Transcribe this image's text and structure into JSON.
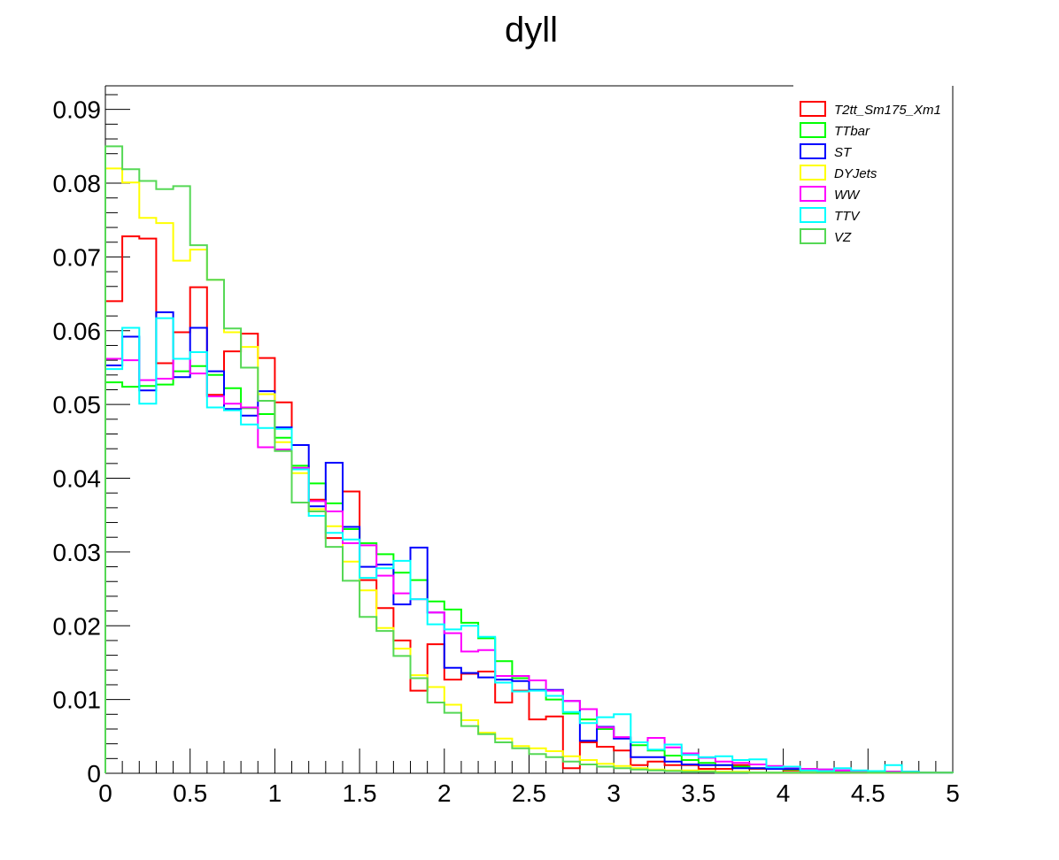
{
  "chart_data": {
    "type": "line",
    "title": "dyll",
    "xlabel": "",
    "ylabel": "",
    "xlim": [
      0,
      5
    ],
    "ylim": [
      0,
      0.0932
    ],
    "bin_width": 0.1,
    "grid": false,
    "legend_position": "top-right",
    "x_ticks": [
      0,
      0.5,
      1,
      1.5,
      2,
      2.5,
      3,
      3.5,
      4,
      4.5,
      5
    ],
    "x_tick_labels": [
      "0",
      "0.5",
      "1",
      "1.5",
      "2",
      "2.5",
      "3",
      "3.5",
      "4",
      "4.5",
      "5"
    ],
    "y_ticks": [
      0,
      0.01,
      0.02,
      0.03,
      0.04,
      0.05,
      0.06,
      0.07,
      0.08,
      0.09
    ],
    "y_tick_labels": [
      "0",
      "0.01",
      "0.02",
      "0.03",
      "0.04",
      "0.05",
      "0.06",
      "0.07",
      "0.08",
      "0.09"
    ],
    "series": [
      {
        "name": "T2tt_Sm175_Xm1",
        "color": "#ff0000",
        "values": [
          0.064,
          0.0728,
          0.0725,
          0.0556,
          0.0598,
          0.0659,
          0.0513,
          0.0572,
          0.0596,
          0.0563,
          0.0503,
          0.0414,
          0.0371,
          0.0319,
          0.0382,
          0.0262,
          0.0224,
          0.018,
          0.0112,
          0.0175,
          0.0127,
          0.0135,
          0.0138,
          0.0096,
          0.0112,
          0.0073,
          0.0077,
          0.0007,
          0.0042,
          0.0036,
          0.0031,
          0.0011,
          0.0016,
          0.0011,
          0.0011,
          0.0006,
          0.0006,
          0.0011,
          0.0006,
          0.0006,
          0.0004,
          0.0004,
          0.0002,
          0.0002,
          0.0001,
          0.0001,
          0.0001,
          0.0001,
          0.0001,
          0.0001
        ]
      },
      {
        "name": "TTbar",
        "color": "#00ff00",
        "values": [
          0.053,
          0.0524,
          0.0525,
          0.0527,
          0.0545,
          0.0552,
          0.054,
          0.0522,
          0.0495,
          0.0487,
          0.0455,
          0.0417,
          0.0393,
          0.0366,
          0.0331,
          0.0312,
          0.0297,
          0.0272,
          0.0262,
          0.0233,
          0.0222,
          0.0204,
          0.0183,
          0.0152,
          0.0129,
          0.0113,
          0.01,
          0.0081,
          0.0073,
          0.006,
          0.0048,
          0.0038,
          0.0031,
          0.0024,
          0.0018,
          0.0014,
          0.0011,
          0.0009,
          0.0007,
          0.0006,
          0.0005,
          0.0004,
          0.0003,
          0.0002,
          0.0002,
          0.0001,
          0.0001,
          0.0001,
          0.0001,
          0.0001
        ]
      },
      {
        "name": "ST",
        "color": "#0000ff",
        "values": [
          0.0553,
          0.0592,
          0.0519,
          0.0625,
          0.0537,
          0.0604,
          0.0545,
          0.0494,
          0.0485,
          0.0518,
          0.0469,
          0.0445,
          0.0362,
          0.0421,
          0.0334,
          0.028,
          0.0283,
          0.0229,
          0.0306,
          0.0218,
          0.0143,
          0.0136,
          0.013,
          0.0127,
          0.0125,
          0.0113,
          0.0113,
          0.0098,
          0.0044,
          0.0063,
          0.0047,
          0.0022,
          0.0022,
          0.0016,
          0.0012,
          0.0011,
          0.0011,
          0.0007,
          0.0007,
          0.0006,
          0.0006,
          0.0005,
          0.0005,
          0.0004,
          0.0003,
          0.0003,
          0.0002,
          0.0002,
          0.0001,
          0.0001
        ]
      },
      {
        "name": "DYJets",
        "color": "#ffff00",
        "values": [
          0.082,
          0.0801,
          0.0753,
          0.0746,
          0.0695,
          0.071,
          0.0669,
          0.0598,
          0.0578,
          0.0514,
          0.0449,
          0.0407,
          0.0358,
          0.0335,
          0.0287,
          0.0248,
          0.0197,
          0.0169,
          0.0133,
          0.0117,
          0.0093,
          0.0072,
          0.0055,
          0.0047,
          0.0037,
          0.0034,
          0.003,
          0.0023,
          0.0018,
          0.0013,
          0.001,
          0.0007,
          0.0005,
          0.0004,
          0.0004,
          0.0003,
          0.0002,
          0.0002,
          0.0001,
          0.0001,
          0.0001,
          0.0001,
          0.0001,
          0.0001,
          0.0001,
          0.0001,
          0.0001,
          0.0001,
          0.0001,
          0.0001
        ]
      },
      {
        "name": "WW",
        "color": "#ff00ff",
        "values": [
          0.0562,
          0.056,
          0.0533,
          0.0535,
          0.0562,
          0.0542,
          0.0511,
          0.0501,
          0.0496,
          0.0442,
          0.0439,
          0.0414,
          0.0369,
          0.0355,
          0.0312,
          0.0309,
          0.0268,
          0.0244,
          0.0236,
          0.0218,
          0.019,
          0.0165,
          0.0167,
          0.0132,
          0.0132,
          0.0126,
          0.0112,
          0.0098,
          0.0087,
          0.0062,
          0.0049,
          0.0042,
          0.0048,
          0.0035,
          0.0027,
          0.0021,
          0.0016,
          0.0014,
          0.0012,
          0.001,
          0.0008,
          0.0006,
          0.0005,
          0.0004,
          0.0003,
          0.0002,
          0.0002,
          0.0001,
          0.0001,
          0.0001
        ]
      },
      {
        "name": "TTV",
        "color": "#00ffff",
        "values": [
          0.0548,
          0.0604,
          0.0501,
          0.0617,
          0.0562,
          0.0571,
          0.0496,
          0.0492,
          0.0473,
          0.0468,
          0.0467,
          0.0412,
          0.0349,
          0.0326,
          0.0317,
          0.0265,
          0.0278,
          0.0288,
          0.0236,
          0.0202,
          0.0195,
          0.02,
          0.0185,
          0.0123,
          0.0111,
          0.0112,
          0.0105,
          0.0083,
          0.0068,
          0.0076,
          0.008,
          0.0042,
          0.0032,
          0.0039,
          0.0025,
          0.0022,
          0.0023,
          0.0018,
          0.0019,
          0.0008,
          0.0009,
          0.0004,
          0.0003,
          0.0007,
          0.0004,
          0.0003,
          0.0011,
          0.0002,
          0.0001,
          0.0001
        ]
      },
      {
        "name": "VZ",
        "color": "#55d855",
        "values": [
          0.085,
          0.0819,
          0.0803,
          0.0792,
          0.0796,
          0.0716,
          0.0669,
          0.0603,
          0.055,
          0.0505,
          0.0437,
          0.0367,
          0.0355,
          0.0307,
          0.0261,
          0.0212,
          0.0193,
          0.0159,
          0.0129,
          0.0096,
          0.0082,
          0.0064,
          0.0053,
          0.0042,
          0.0034,
          0.0026,
          0.0022,
          0.0016,
          0.0012,
          0.0009,
          0.0007,
          0.0005,
          0.0004,
          0.0003,
          0.0002,
          0.0002,
          0.0001,
          0.0001,
          0.0001,
          0.0001,
          0.0001,
          0.0001,
          0.0001,
          0.0001,
          0.0001,
          0.0001,
          0.0001,
          0.0001,
          0.0001,
          0.0001
        ]
      }
    ]
  }
}
